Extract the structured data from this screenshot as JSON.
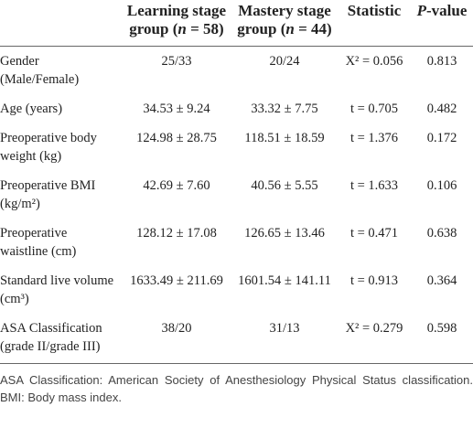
{
  "table": {
    "header": [
      [],
      [
        "Learning stage group (",
        "n",
        " = 58)"
      ],
      [
        "Mastery stage group (",
        "n",
        " = 44)"
      ],
      [
        "Statistic"
      ],
      [
        "P",
        "-value"
      ]
    ],
    "rows": [
      [
        "Gender (Male/Female)",
        "25/33",
        "20/24",
        "X² = 0.056",
        "0.813"
      ],
      [
        "Age (years)",
        "34.53 ± 9.24",
        "33.32 ± 7.75",
        "t = 0.705",
        "0.482"
      ],
      [
        "Preoperative body weight (kg)",
        "124.98 ± 28.75",
        "118.51 ± 18.59",
        "t = 1.376",
        "0.172"
      ],
      [
        "Preoperative BMI (kg/m²)",
        "42.69 ± 7.60",
        "40.56 ± 5.55",
        "t = 1.633",
        "0.106"
      ],
      [
        "Preoperative waistline (cm)",
        "128.12 ± 17.08",
        "126.65 ± 13.46",
        "t = 0.471",
        "0.638"
      ],
      [
        "Standard live volume (cm³)",
        "1633.49 ± 211.69",
        "1601.54 ± 141.11",
        "t = 0.913",
        "0.364"
      ],
      [
        "ASA Classification (grade II/grade III)",
        "38/20",
        "31/13",
        "X² = 0.279",
        "0.598"
      ]
    ],
    "footnote": "ASA Classification: American Society of Anesthesiology Physical Status classification. BMI: Body mass index."
  }
}
